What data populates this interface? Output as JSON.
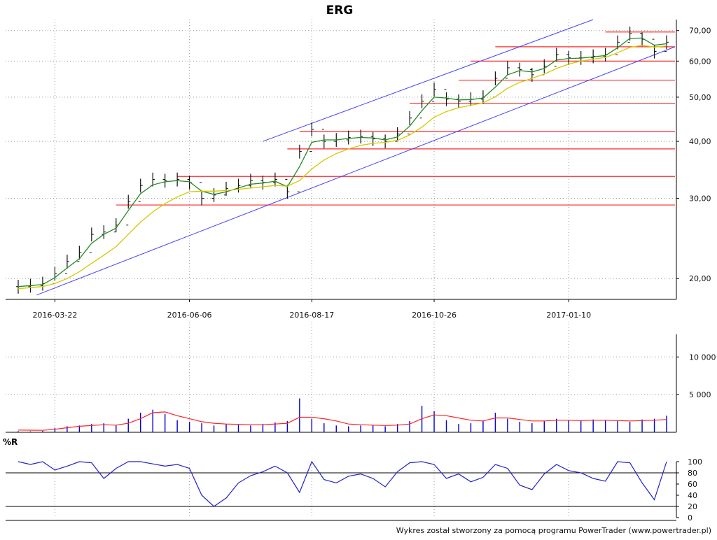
{
  "chart_data": [
    {
      "type": "candlestick",
      "title": "ERG",
      "y_scale": "log",
      "ylim": [
        18.0,
        74.0
      ],
      "yticks": [
        20,
        30,
        40,
        50,
        60,
        70
      ],
      "ytick_labels": [
        "20,00",
        "30,00",
        "40,00",
        "50,00",
        "60,00",
        "70,00"
      ],
      "xtick_labels": [
        "2016-03-22",
        "2016-06-06",
        "2016-08-17",
        "2016-10-26",
        "2017-01-10"
      ],
      "grid": true,
      "series": [
        {
          "name": "",
          "role": "price",
          "color": "#111111",
          "x": [
            "2016-03-01",
            "2016-03-08",
            "2016-03-15",
            "2016-03-22",
            "2016-03-29",
            "2016-04-05",
            "2016-04-12",
            "2016-04-19",
            "2016-04-26",
            "2016-05-03",
            "2016-05-10",
            "2016-05-17",
            "2016-05-24",
            "2016-05-31",
            "2016-06-06",
            "2016-06-13",
            "2016-06-20",
            "2016-06-27",
            "2016-07-04",
            "2016-07-11",
            "2016-07-18",
            "2016-07-25",
            "2016-08-01",
            "2016-08-08",
            "2016-08-17",
            "2016-08-24",
            "2016-08-31",
            "2016-09-07",
            "2016-09-14",
            "2016-09-21",
            "2016-09-28",
            "2016-10-05",
            "2016-10-12",
            "2016-10-19",
            "2016-10-26",
            "2016-11-02",
            "2016-11-09",
            "2016-11-16",
            "2016-11-23",
            "2016-11-30",
            "2016-12-07",
            "2016-12-14",
            "2016-12-21",
            "2016-12-28",
            "2017-01-04",
            "2017-01-10",
            "2017-01-17",
            "2017-01-24",
            "2017-01-31",
            "2017-02-07",
            "2017-02-14",
            "2017-02-21",
            "2017-02-28",
            "2017-03-07"
          ],
          "values": [
            19.2,
            19.3,
            19.5,
            20.5,
            21.8,
            22.8,
            25.0,
            25.3,
            26.2,
            29.5,
            32.0,
            33.0,
            32.8,
            33.0,
            32.5,
            30.0,
            30.5,
            31.5,
            32.0,
            32.8,
            32.5,
            33.0,
            31.0,
            38.0,
            42.5,
            40.0,
            40.3,
            40.8,
            41.0,
            40.5,
            40.0,
            41.5,
            45.0,
            49.0,
            52.0,
            49.5,
            49.0,
            49.5,
            50.0,
            55.0,
            58.0,
            57.5,
            56.0,
            58.5,
            62.0,
            61.0,
            61.0,
            61.5,
            62.0,
            66.0,
            69.0,
            67.0,
            63.0,
            66.0
          ]
        },
        {
          "name": "",
          "role": "moving-average",
          "color": "#228b22",
          "values": [
            19.2,
            19.3,
            19.4,
            20.1,
            21.1,
            22.1,
            23.9,
            25.0,
            25.8,
            28.2,
            30.7,
            32.1,
            32.6,
            32.8,
            32.6,
            31.1,
            30.6,
            31.0,
            31.6,
            32.2,
            32.4,
            32.7,
            31.8,
            35.2,
            39.8,
            40.3,
            40.3,
            40.6,
            40.8,
            40.7,
            40.3,
            40.9,
            43.2,
            46.7,
            50.0,
            49.8,
            49.3,
            49.4,
            49.8,
            52.6,
            56.0,
            57.2,
            56.8,
            57.8,
            60.3,
            60.8,
            60.9,
            61.3,
            61.7,
            64.2,
            67.3,
            67.4,
            65.0,
            65.5
          ]
        },
        {
          "name": "",
          "role": "moving-average-slow",
          "color": "#d6c800",
          "values": [
            19.0,
            19.1,
            19.2,
            19.5,
            20.0,
            20.7,
            21.6,
            22.5,
            23.5,
            25.0,
            26.6,
            28.0,
            29.2,
            30.2,
            31.0,
            31.1,
            31.1,
            31.2,
            31.4,
            31.6,
            31.8,
            32.0,
            31.9,
            32.8,
            34.8,
            36.4,
            37.6,
            38.5,
            39.2,
            39.6,
            39.8,
            40.2,
            41.3,
            43.0,
            45.2,
            46.5,
            47.4,
            48.0,
            48.6,
            50.1,
            52.3,
            53.9,
            55.0,
            56.2,
            57.8,
            59.1,
            60.0,
            60.6,
            61.1,
            62.6,
            64.3,
            65.0,
            64.4,
            64.8
          ]
        }
      ],
      "annotations": {
        "support_resistance_levels": [
          {
            "value": 29.0,
            "color": "#ff2a2a"
          },
          {
            "value": 33.5,
            "color": "#ff2a2a"
          },
          {
            "value": 38.5,
            "color": "#ff2a2a"
          },
          {
            "value": 42.0,
            "color": "#ff2a2a"
          },
          {
            "value": 48.5,
            "color": "#ff2a2a"
          },
          {
            "value": 54.5,
            "color": "#ff2a2a"
          },
          {
            "value": 60.0,
            "color": "#ff2a2a"
          },
          {
            "value": 64.5,
            "color": "#ff2a2a"
          },
          {
            "value": 69.5,
            "color": "#ff2a2a"
          }
        ],
        "trend_channel": {
          "color": "#4444ff",
          "lines": [
            "upper",
            "lower"
          ]
        }
      }
    },
    {
      "type": "bar",
      "role": "volume",
      "ylim": [
        0,
        13000
      ],
      "yticks": [
        5000,
        10000
      ],
      "ytick_labels": [
        "5 000",
        "10 000"
      ],
      "grid": true,
      "series": [
        {
          "name": "",
          "role": "volume",
          "color": "#0000cc",
          "values": [
            150,
            120,
            180,
            600,
            800,
            900,
            1100,
            1200,
            900,
            1800,
            2600,
            3000,
            2400,
            1600,
            1400,
            1200,
            900,
            1100,
            1000,
            900,
            1100,
            1300,
            1500,
            4500,
            1800,
            1200,
            900,
            800,
            900,
            1000,
            800,
            1100,
            1500,
            3500,
            2800,
            1600,
            1100,
            1200,
            1500,
            2600,
            1800,
            1400,
            1200,
            1500,
            1800,
            1600,
            1500,
            1700,
            1600,
            1500,
            1400,
            1700,
            1800,
            2200
          ]
        },
        {
          "name": "",
          "role": "volume-average",
          "color": "#ff2222",
          "values": [
            300,
            280,
            260,
            400,
            600,
            800,
            900,
            1000,
            950,
            1200,
            1800,
            2600,
            2700,
            2200,
            1800,
            1400,
            1200,
            1100,
            1050,
            1000,
            1000,
            1100,
            1200,
            2000,
            2000,
            1800,
            1500,
            1100,
            1000,
            950,
            900,
            950,
            1100,
            1800,
            2300,
            2200,
            1900,
            1600,
            1500,
            1900,
            1900,
            1700,
            1500,
            1500,
            1600,
            1600,
            1550,
            1600,
            1600,
            1550,
            1500,
            1550,
            1600,
            1700
          ]
        }
      ]
    },
    {
      "type": "line",
      "title": "%R",
      "ylim": [
        0,
        100
      ],
      "yticks": [
        0,
        20,
        40,
        60,
        80,
        100
      ],
      "ytick_labels": [
        "0",
        "20",
        "40",
        "60",
        "80",
        "100"
      ],
      "reference_lines": [
        20,
        80
      ],
      "grid": true,
      "series": [
        {
          "name": "",
          "role": "williams-r",
          "color": "#2222cc",
          "values": [
            100,
            95,
            100,
            85,
            92,
            100,
            98,
            70,
            88,
            100,
            100,
            96,
            92,
            95,
            88,
            40,
            20,
            35,
            62,
            75,
            82,
            92,
            80,
            45,
            100,
            68,
            62,
            74,
            78,
            70,
            55,
            82,
            98,
            100,
            95,
            70,
            78,
            64,
            72,
            95,
            88,
            58,
            50,
            78,
            95,
            84,
            80,
            70,
            65,
            100,
            98,
            62,
            32,
            100
          ]
        }
      ]
    }
  ],
  "colors": {
    "grid": "#9a9a9a",
    "axis": "#000000",
    "price": "#111111",
    "ma_fast": "#228b22",
    "ma_slow": "#d6c800",
    "levels": "#ff2a2a",
    "channel": "#4444ff",
    "volume": "#0000cc",
    "volume_avg": "#ff2222",
    "wpr": "#2222cc"
  },
  "footer": {
    "credit": "Wykres został stworzony za pomocą programu PowerTrader (www.powertrader.pl)"
  }
}
